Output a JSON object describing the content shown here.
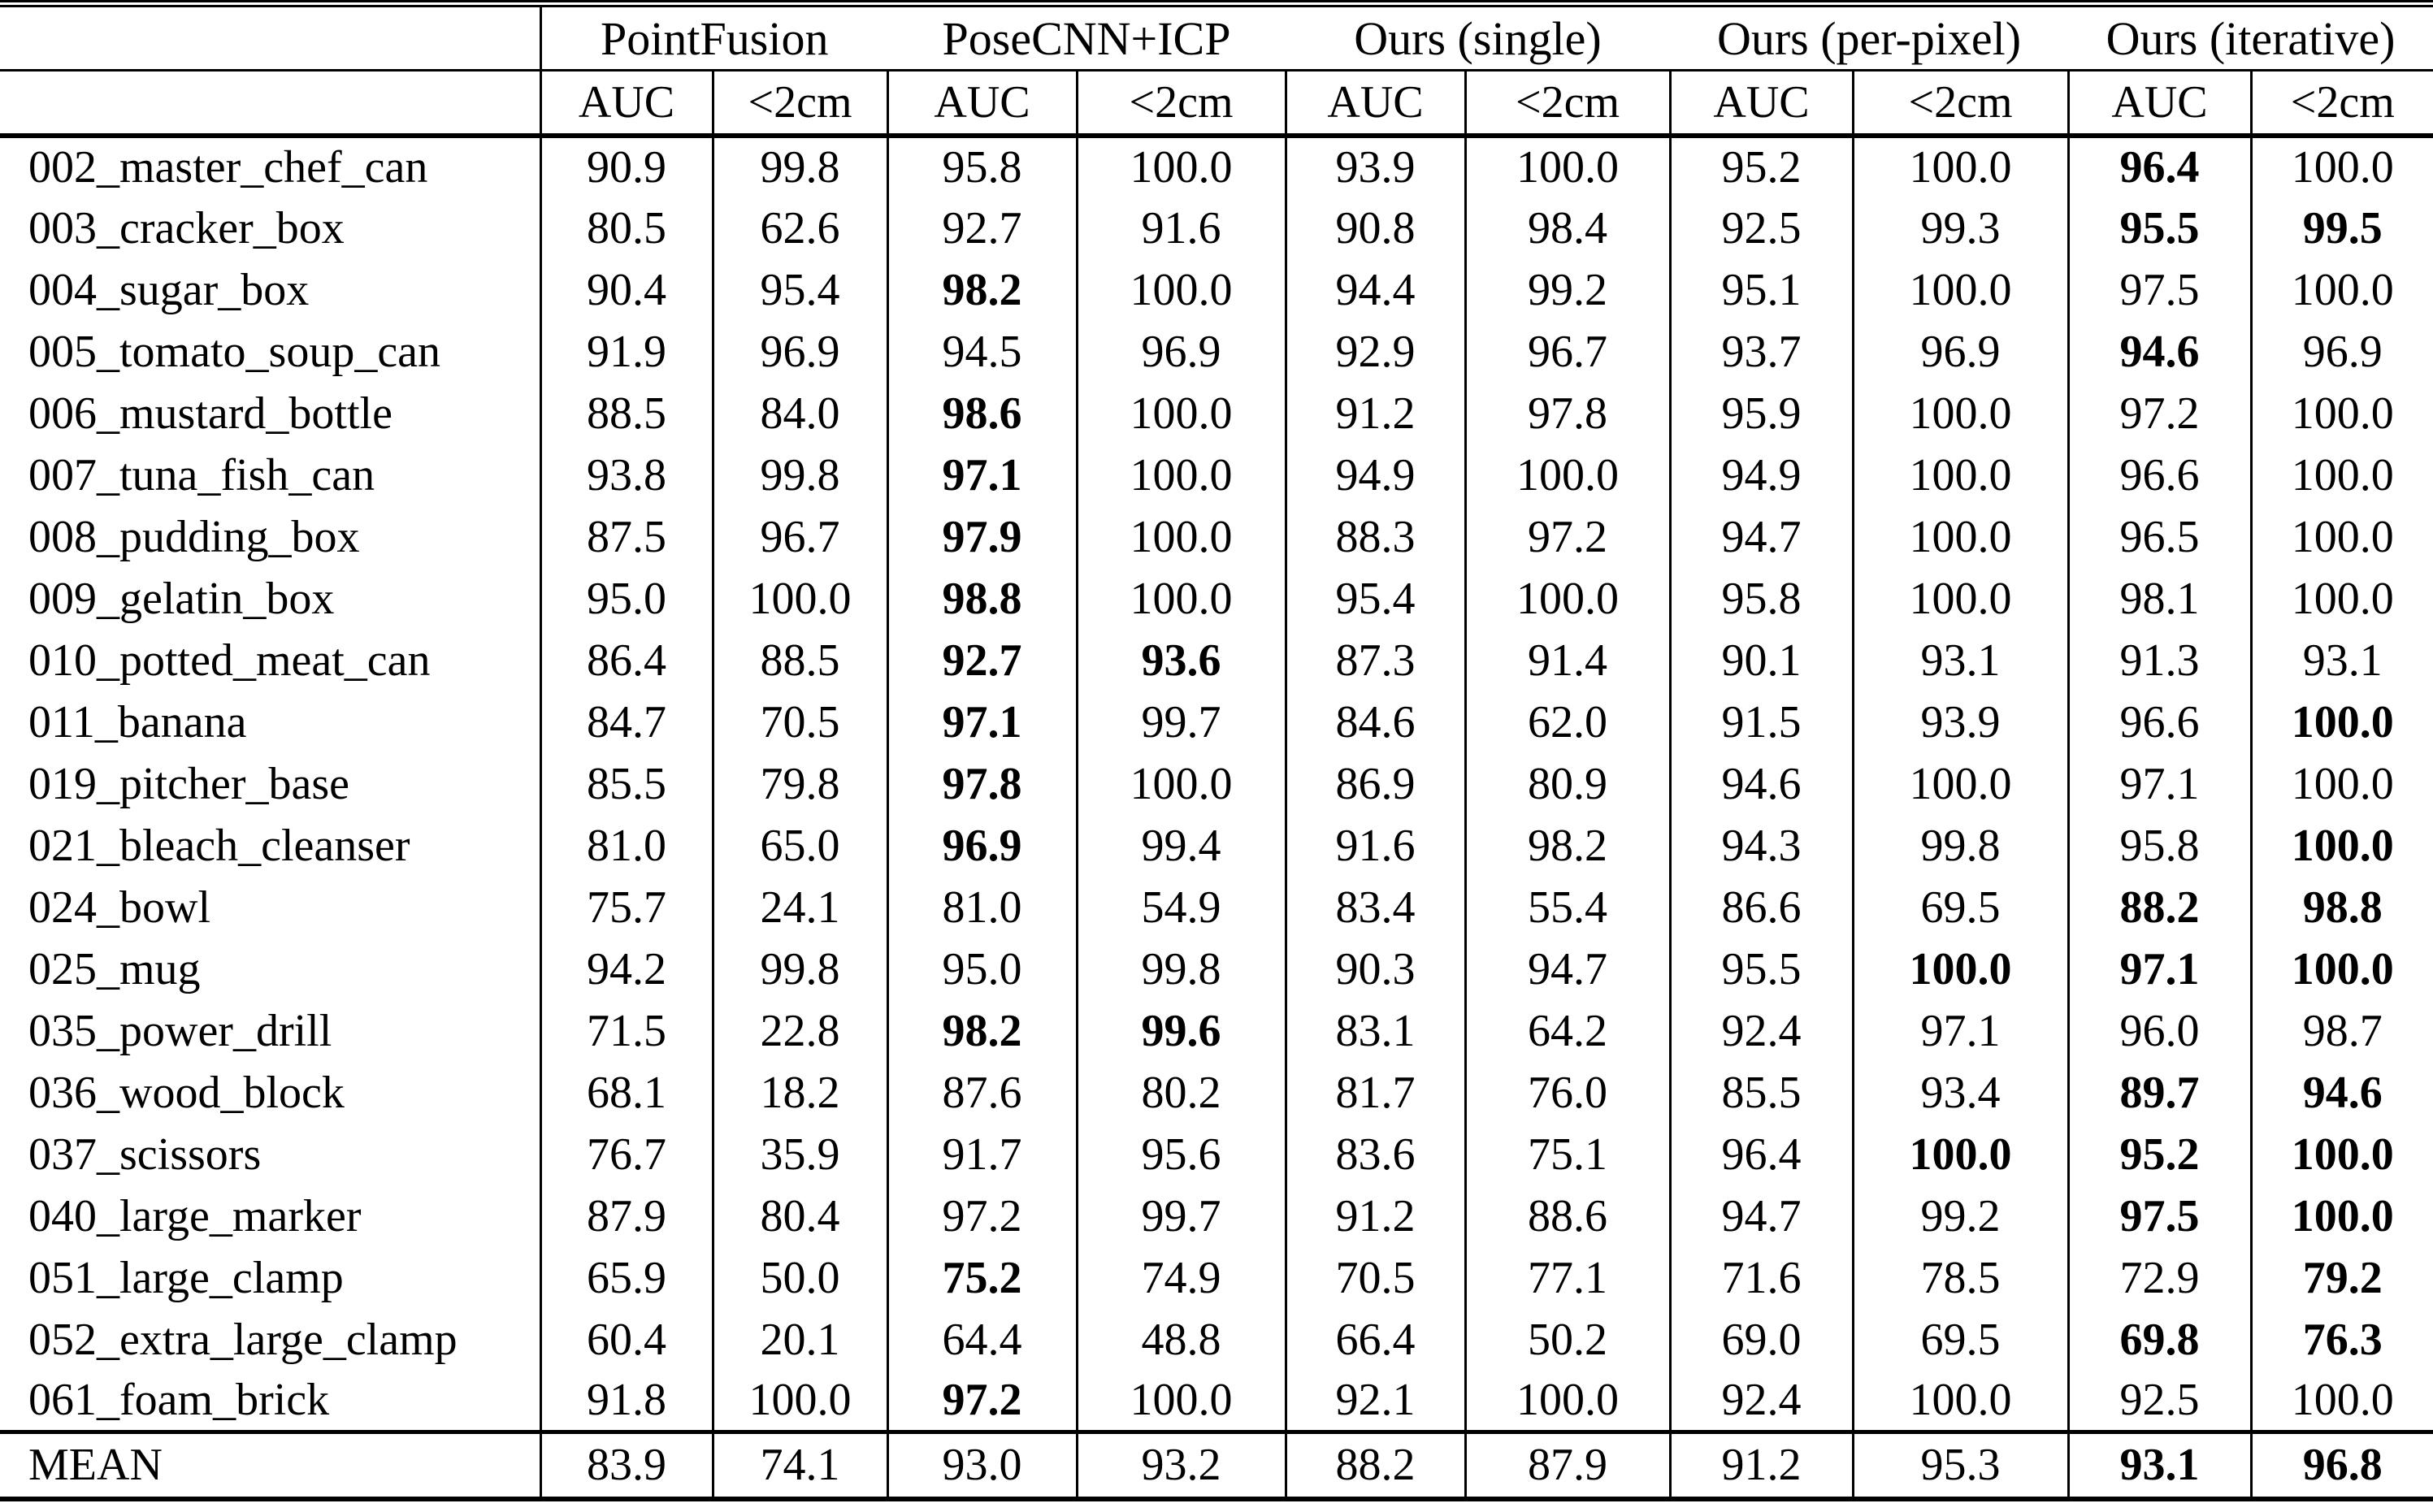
{
  "table": {
    "corner": "",
    "groups": [
      "PointFusion",
      "PoseCNN+ICP",
      "Ours (single)",
      "Ours (per-pixel)",
      "Ours (iterative)"
    ],
    "metrics": [
      "AUC",
      "<2cm"
    ],
    "rows": [
      {
        "label": "002_master_chef_can",
        "values": [
          "90.9",
          "99.8",
          "95.8",
          "100.0",
          "93.9",
          "100.0",
          "95.2",
          "100.0",
          "96.4",
          "100.0"
        ],
        "bold": [
          8
        ]
      },
      {
        "label": "003_cracker_box",
        "values": [
          "80.5",
          "62.6",
          "92.7",
          "91.6",
          "90.8",
          "98.4",
          "92.5",
          "99.3",
          "95.5",
          "99.5"
        ],
        "bold": [
          8,
          9
        ]
      },
      {
        "label": "004_sugar_box",
        "values": [
          "90.4",
          "95.4",
          "98.2",
          "100.0",
          "94.4",
          "99.2",
          "95.1",
          "100.0",
          "97.5",
          "100.0"
        ],
        "bold": [
          2
        ]
      },
      {
        "label": "005_tomato_soup_can",
        "values": [
          "91.9",
          "96.9",
          "94.5",
          "96.9",
          "92.9",
          "96.7",
          "93.7",
          "96.9",
          "94.6",
          "96.9"
        ],
        "bold": [
          8
        ]
      },
      {
        "label": "006_mustard_bottle",
        "values": [
          "88.5",
          "84.0",
          "98.6",
          "100.0",
          "91.2",
          "97.8",
          "95.9",
          "100.0",
          "97.2",
          "100.0"
        ],
        "bold": [
          2
        ]
      },
      {
        "label": "007_tuna_fish_can",
        "values": [
          "93.8",
          "99.8",
          "97.1",
          "100.0",
          "94.9",
          "100.0",
          "94.9",
          "100.0",
          "96.6",
          "100.0"
        ],
        "bold": [
          2
        ]
      },
      {
        "label": "008_pudding_box",
        "values": [
          "87.5",
          "96.7",
          "97.9",
          "100.0",
          "88.3",
          "97.2",
          "94.7",
          "100.0",
          "96.5",
          "100.0"
        ],
        "bold": [
          2
        ]
      },
      {
        "label": "009_gelatin_box",
        "values": [
          "95.0",
          "100.0",
          "98.8",
          "100.0",
          "95.4",
          "100.0",
          "95.8",
          "100.0",
          "98.1",
          "100.0"
        ],
        "bold": [
          2
        ]
      },
      {
        "label": "010_potted_meat_can",
        "values": [
          "86.4",
          "88.5",
          "92.7",
          "93.6",
          "87.3",
          "91.4",
          "90.1",
          "93.1",
          "91.3",
          "93.1"
        ],
        "bold": [
          2,
          3
        ]
      },
      {
        "label": "011_banana",
        "values": [
          "84.7",
          "70.5",
          "97.1",
          "99.7",
          "84.6",
          "62.0",
          "91.5",
          "93.9",
          "96.6",
          "100.0"
        ],
        "bold": [
          2,
          9
        ]
      },
      {
        "label": "019_pitcher_base",
        "values": [
          "85.5",
          "79.8",
          "97.8",
          "100.0",
          "86.9",
          "80.9",
          "94.6",
          "100.0",
          "97.1",
          "100.0"
        ],
        "bold": [
          2
        ]
      },
      {
        "label": "021_bleach_cleanser",
        "values": [
          "81.0",
          "65.0",
          "96.9",
          "99.4",
          "91.6",
          "98.2",
          "94.3",
          "99.8",
          "95.8",
          "100.0"
        ],
        "bold": [
          2,
          9
        ]
      },
      {
        "label": "024_bowl",
        "values": [
          "75.7",
          "24.1",
          "81.0",
          "54.9",
          "83.4",
          "55.4",
          "86.6",
          "69.5",
          "88.2",
          "98.8"
        ],
        "bold": [
          8,
          9
        ]
      },
      {
        "label": "025_mug",
        "values": [
          "94.2",
          "99.8",
          "95.0",
          "99.8",
          "90.3",
          "94.7",
          "95.5",
          "100.0",
          "97.1",
          "100.0"
        ],
        "bold": [
          7,
          8,
          9
        ]
      },
      {
        "label": "035_power_drill",
        "values": [
          "71.5",
          "22.8",
          "98.2",
          "99.6",
          "83.1",
          "64.2",
          "92.4",
          "97.1",
          "96.0",
          "98.7"
        ],
        "bold": [
          2,
          3
        ]
      },
      {
        "label": "036_wood_block",
        "values": [
          "68.1",
          "18.2",
          "87.6",
          "80.2",
          "81.7",
          "76.0",
          "85.5",
          "93.4",
          "89.7",
          "94.6"
        ],
        "bold": [
          8,
          9
        ]
      },
      {
        "label": "037_scissors",
        "values": [
          "76.7",
          "35.9",
          "91.7",
          "95.6",
          "83.6",
          "75.1",
          "96.4",
          "100.0",
          "95.2",
          "100.0"
        ],
        "bold": [
          7,
          8,
          9
        ]
      },
      {
        "label": "040_large_marker",
        "values": [
          "87.9",
          "80.4",
          "97.2",
          "99.7",
          "91.2",
          "88.6",
          "94.7",
          "99.2",
          "97.5",
          "100.0"
        ],
        "bold": [
          8,
          9
        ]
      },
      {
        "label": "051_large_clamp",
        "values": [
          "65.9",
          "50.0",
          "75.2",
          "74.9",
          "70.5",
          "77.1",
          "71.6",
          "78.5",
          "72.9",
          "79.2"
        ],
        "bold": [
          2,
          9
        ]
      },
      {
        "label": "052_extra_large_clamp",
        "values": [
          "60.4",
          "20.1",
          "64.4",
          "48.8",
          "66.4",
          "50.2",
          "69.0",
          "69.5",
          "69.8",
          "76.3"
        ],
        "bold": [
          8,
          9
        ]
      },
      {
        "label": "061_foam_brick",
        "values": [
          "91.8",
          "100.0",
          "97.2",
          "100.0",
          "92.1",
          "100.0",
          "92.4",
          "100.0",
          "92.5",
          "100.0"
        ],
        "bold": [
          2
        ]
      },
      {
        "label": "MEAN",
        "values": [
          "83.9",
          "74.1",
          "93.0",
          "93.2",
          "88.2",
          "87.9",
          "91.2",
          "95.3",
          "93.1",
          "96.8"
        ],
        "bold": [
          8,
          9
        ]
      }
    ]
  }
}
